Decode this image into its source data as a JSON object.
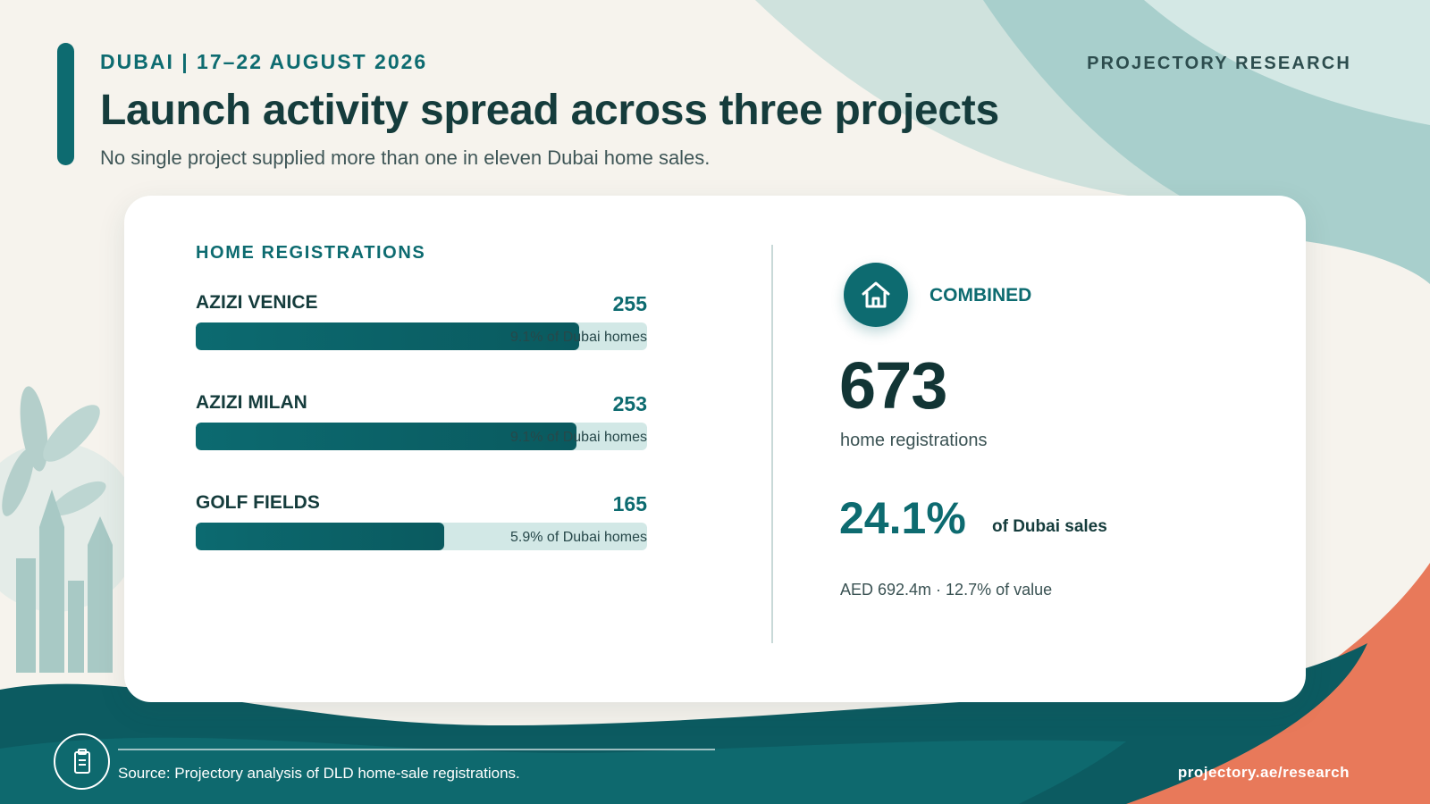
{
  "header": {
    "eyebrow": "DUBAI | 17–22 AUGUST 2026",
    "brand": "PROJECTORY RESEARCH",
    "title": "Launch activity spread across three projects",
    "subtitle": "No single project supplied more than one in eleven Dubai home sales."
  },
  "colors": {
    "accent": "#0d6b70",
    "track": "#d2e8e6",
    "coral": "#e8795a",
    "background": "#f6f3ed"
  },
  "icons": {
    "combined": "house-icon",
    "footer": "document-icon"
  },
  "chart_data": {
    "type": "bar",
    "orientation": "horizontal",
    "title": "HOME REGISTRATIONS",
    "categories": [
      "AZIZI VENICE",
      "AZIZI MILAN",
      "GOLF FIELDS"
    ],
    "values": [
      255,
      253,
      165
    ],
    "value_labels": [
      "255",
      "253",
      "165"
    ],
    "share_labels": [
      "9.1% of Dubai homes",
      "9.1% of Dubai homes",
      "5.9% of Dubai homes"
    ],
    "xlim": [
      0,
      300
    ]
  },
  "summary": {
    "label": "COMBINED",
    "total": "673",
    "total_unit": "home registrations",
    "share": "24.1%",
    "share_label": "of Dubai sales",
    "value_line": "AED 692.4m · 12.7% of value"
  },
  "footer": {
    "source": "Source: Projectory analysis of DLD home-sale registrations.",
    "url": "projectory.ae/research"
  }
}
